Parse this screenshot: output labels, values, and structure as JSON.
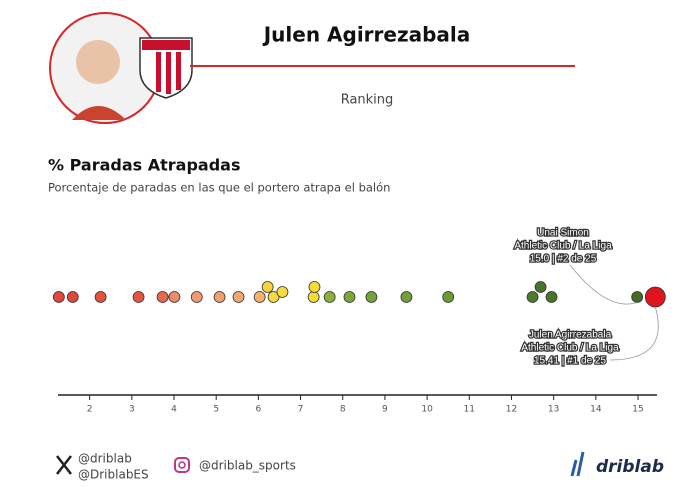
{
  "chart_data": {
    "type": "strip",
    "player": "Julen Agirrezabala",
    "section": "Ranking",
    "title": "% Paradas Atrapadas",
    "subtitle": "Porcentaje de paradas en las que el portero atrapa el balón",
    "values": [
      1.27,
      1.6,
      2.26,
      3.16,
      3.73,
      4.01,
      4.54,
      5.08,
      5.53,
      6.03,
      6.22,
      6.36,
      6.57,
      7.31,
      7.33,
      7.69,
      8.16,
      8.68,
      9.51,
      10.5,
      12.5,
      12.69,
      12.95,
      14.98,
      15.41
    ],
    "colors": [
      "#e0473b",
      "#e0473b",
      "#e3523d",
      "#e5553e",
      "#e86a4b",
      "#ec8a6a",
      "#f09a72",
      "#f0a070",
      "#f2a875",
      "#f4b26c",
      "#f5d33f",
      "#f7d940",
      "#f7dc3e",
      "#f5dc32",
      "#f5dc32",
      "#8bb03a",
      "#7aa63a",
      "#74a33a",
      "#6f9f35",
      "#6a9a35",
      "#4f7a2c",
      "#4b7329",
      "#4b7329",
      "#446b25",
      "#e0141e"
    ],
    "xlim": [
      1.25,
      15.45
    ],
    "xticks": [
      2,
      3,
      4,
      5,
      6,
      7,
      8,
      9,
      10,
      11,
      12,
      13,
      14,
      15
    ],
    "annotations": [
      [
        "Unai Simon",
        "Athletic Club / La Liga",
        "15.0 | #2 de 25"
      ],
      [
        "Julen Agirrezabala",
        "Athletic Club / La Liga",
        "15.41 | #1 de 25"
      ]
    ]
  },
  "footer": {
    "x_handles": [
      "@driblab",
      "@DriblabES"
    ],
    "instagram": "@driblab_sports",
    "brand": "driblab"
  }
}
